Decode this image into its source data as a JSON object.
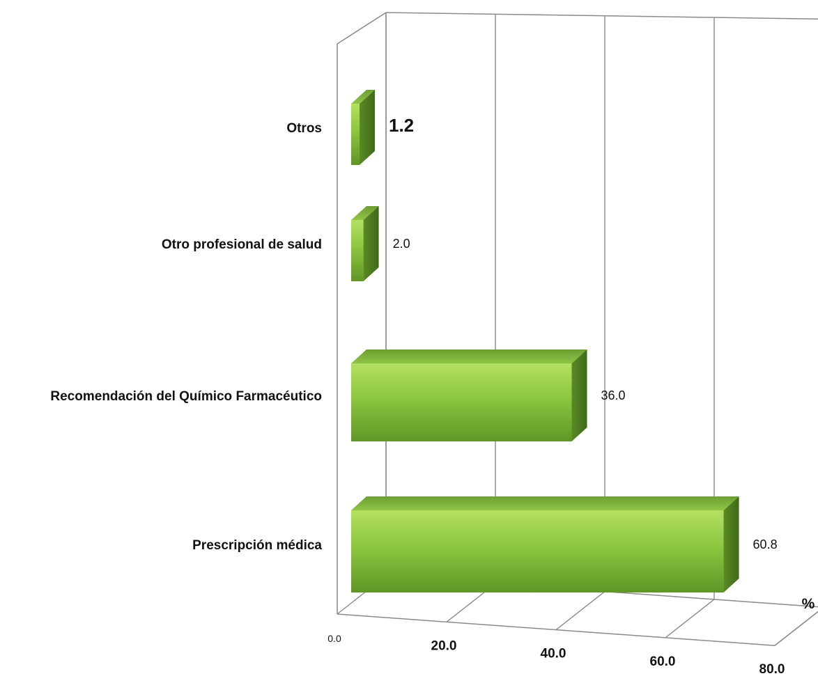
{
  "chart_data": {
    "type": "bar",
    "orientation": "horizontal",
    "three_d": true,
    "categories": [
      "Otros",
      "Otro profesional de salud",
      "Recomendación del Químico Farmacéutico",
      "Prescripción médica"
    ],
    "values": [
      1.2,
      2.0,
      36.0,
      60.8
    ],
    "value_labels": [
      "1.2",
      "2.0",
      "36.0",
      "60.8"
    ],
    "x_ticks": [
      "0.0",
      "20.0",
      "40.0",
      "60.0",
      "80.0"
    ],
    "xlim": [
      0,
      80
    ],
    "unit": "%",
    "grid": true,
    "bar_color": "#7ab52e"
  }
}
